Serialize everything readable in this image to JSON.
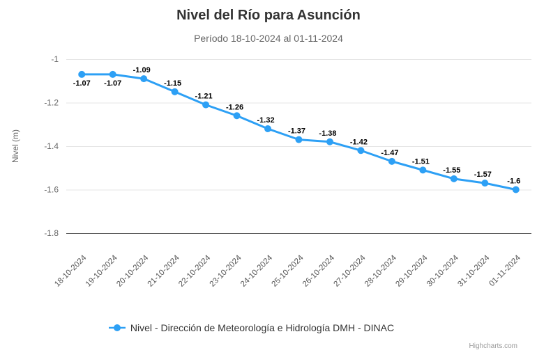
{
  "credits": "Highcharts.com",
  "colors": {
    "series": "#2da0f5",
    "grid": "#e6e6e6",
    "axis_line": "#5a5a5a",
    "title": "#333333",
    "subtitle": "#666666",
    "y_label": "#666666",
    "x_label": "#555555",
    "data_label": "#000000",
    "legend_text": "#333333",
    "credits_text": "#999999"
  },
  "chart_data": {
    "type": "line",
    "title": "Nivel del Río para Asunción",
    "subtitle": "Período 18-10-2024 al 01-11-2024",
    "xlabel": "",
    "ylabel": "Nivel (m)",
    "ylim": [
      -1.8,
      -1.0
    ],
    "grid": true,
    "legend_position": "bottom-center",
    "marker": "circle",
    "categories": [
      "18-10-2024",
      "19-10-2024",
      "20-10-2024",
      "21-10-2024",
      "22-10-2024",
      "23-10-2024",
      "24-10-2024",
      "25-10-2024",
      "26-10-2024",
      "27-10-2024",
      "28-10-2024",
      "29-10-2024",
      "30-10-2024",
      "31-10-2024",
      "01-11-2024"
    ],
    "series": [
      {
        "name": "Nivel - Dirección de Meteorología e Hidrología DMH - DINAC",
        "values": [
          -1.07,
          -1.07,
          -1.09,
          -1.15,
          -1.21,
          -1.26,
          -1.32,
          -1.37,
          -1.38,
          -1.42,
          -1.47,
          -1.51,
          -1.55,
          -1.57,
          -1.6
        ]
      }
    ],
    "yticks": [
      {
        "value": -1.0,
        "label": "-1"
      },
      {
        "value": -1.2,
        "label": "-1.2"
      },
      {
        "value": -1.4,
        "label": "-1.4"
      },
      {
        "value": -1.6,
        "label": "-1.6"
      },
      {
        "value": -1.8,
        "label": "-1.8"
      }
    ]
  }
}
